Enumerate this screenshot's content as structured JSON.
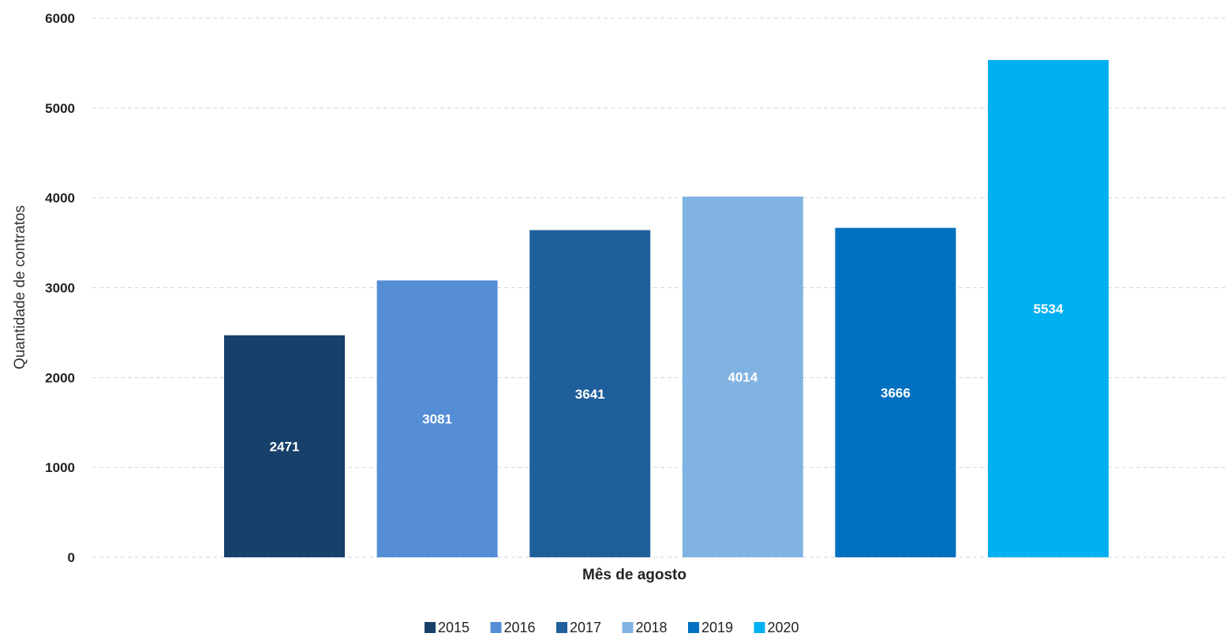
{
  "chart_data": {
    "type": "bar",
    "title": "",
    "xlabel": "Mês de agosto",
    "ylabel": "Quantidade de contratos",
    "ylim": [
      0,
      6000
    ],
    "yticks": [
      0,
      1000,
      2000,
      3000,
      4000,
      5000,
      6000
    ],
    "grid": true,
    "legend_position": "bottom",
    "series": [
      {
        "name": "2015",
        "value": 2471,
        "color": "#17406A"
      },
      {
        "name": "2016",
        "value": 3081,
        "color": "#558ED5"
      },
      {
        "name": "2017",
        "value": 3641,
        "color": "#1F5F9B"
      },
      {
        "name": "2018",
        "value": 4014,
        "color": "#80B3E2"
      },
      {
        "name": "2019",
        "value": 3666,
        "color": "#0070C0"
      },
      {
        "name": "2020",
        "value": 5534,
        "color": "#00B0F0"
      }
    ]
  }
}
